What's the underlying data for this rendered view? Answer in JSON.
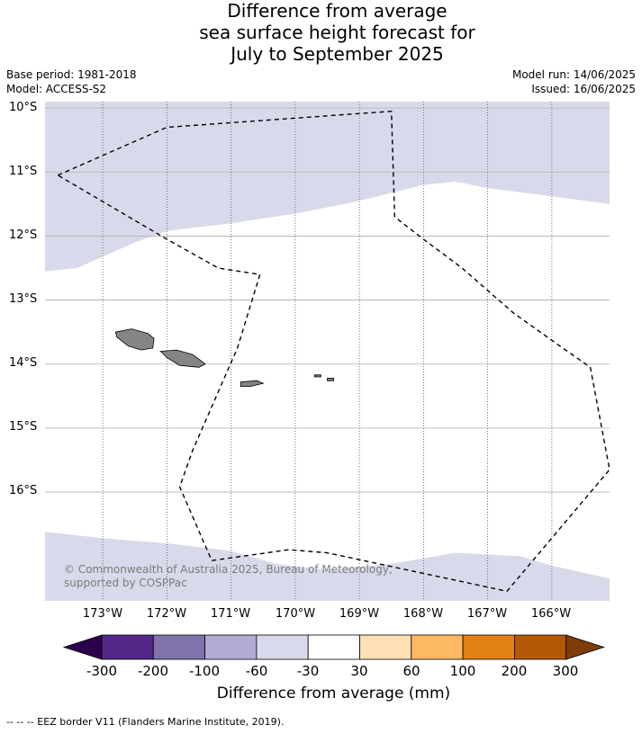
{
  "title_lines": [
    "Difference from average",
    "sea surface height forecast for",
    "July to September 2025"
  ],
  "base_period": "Base period: 1981-2018",
  "model": "Model: ACCESS-S2",
  "model_run": "Model run: 14/06/2025",
  "issued": "Issued: 16/06/2025",
  "copyright": "© Commonwealth of Australia 2025, Bureau of Meteorology, supported by COSPPac",
  "lat_labels": [
    "10°S",
    "11°S",
    "12°S",
    "13°S",
    "14°S",
    "15°S",
    "16°S"
  ],
  "lon_labels": [
    "173°W",
    "172°W",
    "171°W",
    "170°W",
    "169°W",
    "168°W",
    "167°W",
    "166°W"
  ],
  "colorbar": {
    "ticks": [
      "-300",
      "-200",
      "-100",
      "-60",
      "-30",
      "30",
      "60",
      "100",
      "200",
      "300"
    ],
    "colors": [
      "#2d004b",
      "#542788",
      "#8073ac",
      "#b2abd2",
      "#d8daeb",
      "#ffffff",
      "#fee0b6",
      "#fdb863",
      "#e08214",
      "#b35806",
      "#7f3b08"
    ],
    "label": "Difference from average (mm)"
  },
  "footnote": "--  --  -- EEZ border V11 (Flanders Marine Institute, 2019).",
  "map": {
    "lon_range": [
      -173.9,
      -165.1
    ],
    "lat_range": [
      -17.7,
      -9.9
    ],
    "anomaly_fill_color": "#d8daeb",
    "land_color": "#858585",
    "north_band_boundary": [
      [
        -173.9,
        -12.55
      ],
      [
        -173.4,
        -12.5
      ],
      [
        -172.5,
        -12.1
      ],
      [
        -172.0,
        -11.92
      ],
      [
        -171.0,
        -11.8
      ],
      [
        -170.0,
        -11.65
      ],
      [
        -169.0,
        -11.45
      ],
      [
        -168.0,
        -11.2
      ],
      [
        -167.5,
        -11.15
      ],
      [
        -167.0,
        -11.25
      ],
      [
        -166.0,
        -11.38
      ],
      [
        -165.1,
        -11.5
      ]
    ],
    "south_band_boundary": [
      [
        -173.9,
        -16.62
      ],
      [
        -173.0,
        -16.72
      ],
      [
        -172.0,
        -16.8
      ],
      [
        -171.0,
        -16.92
      ],
      [
        -170.3,
        -17.12
      ],
      [
        -169.5,
        -17.22
      ],
      [
        -168.5,
        -17.12
      ],
      [
        -167.5,
        -16.95
      ],
      [
        -166.5,
        -17.0
      ],
      [
        -166.0,
        -17.15
      ],
      [
        -165.1,
        -17.35
      ]
    ],
    "eez_border": [
      [
        -173.7,
        -11.05
      ],
      [
        -172.0,
        -10.3
      ],
      [
        -168.5,
        -10.05
      ],
      [
        -168.45,
        -11.7
      ],
      [
        -168.0,
        -12.05
      ],
      [
        -167.4,
        -12.5
      ],
      [
        -166.6,
        -13.2
      ],
      [
        -165.9,
        -13.7
      ],
      [
        -165.4,
        -14.05
      ],
      [
        -165.1,
        -15.65
      ],
      [
        -166.7,
        -17.55
      ],
      [
        -169.5,
        -16.95
      ],
      [
        -170.1,
        -16.9
      ],
      [
        -171.3,
        -17.07
      ],
      [
        -171.8,
        -15.92
      ],
      [
        -171.6,
        -15.35
      ],
      [
        -170.9,
        -13.75
      ],
      [
        -170.55,
        -12.6
      ],
      [
        -171.2,
        -12.5
      ],
      [
        -172.0,
        -12.05
      ],
      [
        -173.7,
        -11.05
      ]
    ],
    "islands": [
      [
        [
          -172.8,
          -13.5
        ],
        [
          -172.55,
          -13.45
        ],
        [
          -172.3,
          -13.52
        ],
        [
          -172.2,
          -13.6
        ],
        [
          -172.22,
          -13.75
        ],
        [
          -172.4,
          -13.78
        ],
        [
          -172.6,
          -13.72
        ],
        [
          -172.78,
          -13.58
        ]
      ],
      [
        [
          -172.1,
          -13.8
        ],
        [
          -171.85,
          -13.78
        ],
        [
          -171.6,
          -13.85
        ],
        [
          -171.4,
          -14.0
        ],
        [
          -171.5,
          -14.05
        ],
        [
          -171.8,
          -14.02
        ],
        [
          -172.0,
          -13.9
        ]
      ],
      [
        [
          -170.85,
          -14.28
        ],
        [
          -170.6,
          -14.26
        ],
        [
          -170.5,
          -14.3
        ],
        [
          -170.7,
          -14.35
        ],
        [
          -170.85,
          -14.35
        ]
      ],
      [
        [
          -169.7,
          -14.17
        ],
        [
          -169.6,
          -14.17
        ],
        [
          -169.6,
          -14.2
        ],
        [
          -169.7,
          -14.2
        ]
      ],
      [
        [
          -169.5,
          -14.22
        ],
        [
          -169.4,
          -14.22
        ],
        [
          -169.4,
          -14.26
        ],
        [
          -169.5,
          -14.26
        ]
      ]
    ]
  }
}
